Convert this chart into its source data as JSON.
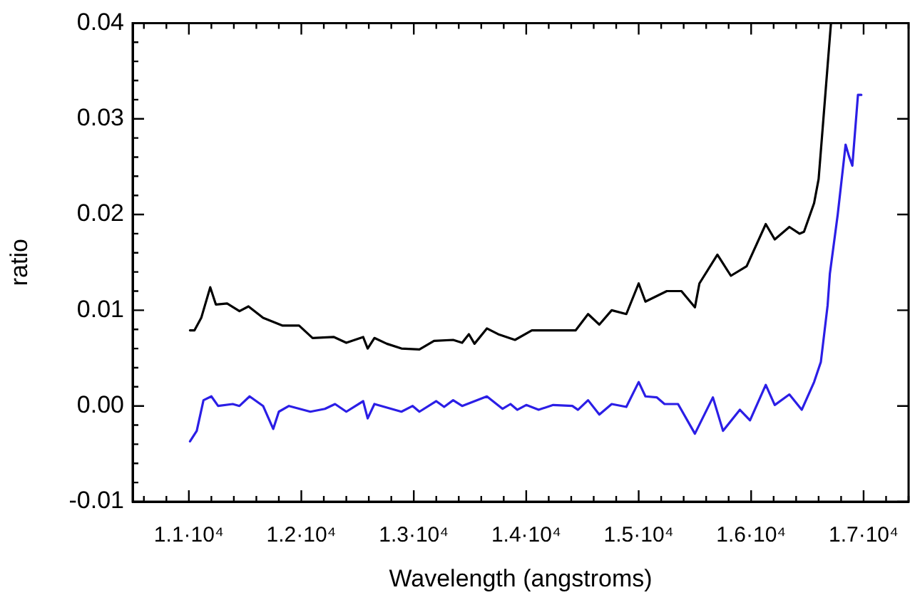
{
  "chart_data": {
    "type": "line",
    "xlabel": "Wavelength (angstroms)",
    "ylabel": "ratio",
    "xlim": [
      10500,
      17400
    ],
    "ylim": [
      -0.01,
      0.04
    ],
    "xticks": [
      {
        "value": 11000,
        "label": "1.1·10⁴"
      },
      {
        "value": 12000,
        "label": "1.2·10⁴"
      },
      {
        "value": 13000,
        "label": "1.3·10⁴"
      },
      {
        "value": 14000,
        "label": "1.4·10⁴"
      },
      {
        "value": 15000,
        "label": "1.5·10⁴"
      },
      {
        "value": 16000,
        "label": "1.6·10⁴"
      },
      {
        "value": 17000,
        "label": "1.7·10⁴"
      }
    ],
    "yticks": [
      {
        "value": -0.01,
        "label": "-0.01"
      },
      {
        "value": 0,
        "label": "0.00"
      },
      {
        "value": 0.01,
        "label": "0.01"
      },
      {
        "value": 0.02,
        "label": "0.02"
      },
      {
        "value": 0.03,
        "label": "0.03"
      },
      {
        "value": 0.04,
        "label": "0.04"
      }
    ],
    "grid": false,
    "legend": false,
    "marker": "none",
    "line_style": "solid",
    "series": [
      {
        "color": "#000000",
        "x": [
          11010,
          11050,
          11110,
          11190,
          11240,
          11340,
          11450,
          11530,
          11660,
          11830,
          11980,
          12100,
          12290,
          12400,
          12550,
          12590,
          12650,
          12760,
          12890,
          13050,
          13180,
          13350,
          13430,
          13490,
          13540,
          13650,
          13750,
          13900,
          14050,
          14440,
          14550,
          14650,
          14760,
          14890,
          15000,
          15060,
          15250,
          15380,
          15500,
          15540,
          15700,
          15820,
          15960,
          16130,
          16210,
          16340,
          16430,
          16470,
          16560,
          16600,
          16640,
          16710
        ],
        "values": [
          0.0079,
          0.0079,
          0.0092,
          0.0124,
          0.0106,
          0.0107,
          0.0099,
          0.0104,
          0.0092,
          0.0084,
          0.0084,
          0.0071,
          0.0072,
          0.0066,
          0.0072,
          0.006,
          0.0071,
          0.0065,
          0.006,
          0.0059,
          0.0068,
          0.0069,
          0.0066,
          0.0075,
          0.0065,
          0.0081,
          0.0075,
          0.0069,
          0.0079,
          0.0079,
          0.0096,
          0.0085,
          0.01,
          0.0096,
          0.0128,
          0.0109,
          0.012,
          0.012,
          0.0103,
          0.0128,
          0.0158,
          0.0136,
          0.0146,
          0.019,
          0.0174,
          0.0187,
          0.018,
          0.0182,
          0.0212,
          0.0237,
          0.0296,
          0.04
        ]
      },
      {
        "color": "#2b1ee6",
        "x": [
          11010,
          11070,
          11130,
          11200,
          11260,
          11390,
          11450,
          11540,
          11660,
          11750,
          11800,
          11890,
          12080,
          12210,
          12300,
          12400,
          12550,
          12590,
          12650,
          12890,
          12990,
          13050,
          13200,
          13270,
          13350,
          13430,
          13650,
          13790,
          13860,
          13920,
          14000,
          14110,
          14240,
          14410,
          14460,
          14550,
          14650,
          14760,
          14890,
          15000,
          15060,
          15160,
          15230,
          15350,
          15500,
          15660,
          15750,
          15900,
          15990,
          16130,
          16210,
          16340,
          16450,
          16560,
          16620,
          16680,
          16700,
          16770,
          16840,
          16870,
          16900,
          16950,
          16980
        ],
        "values": [
          -0.0037,
          -0.0026,
          0.0006,
          0.001,
          0,
          0.0002,
          0,
          0.001,
          0,
          -0.0024,
          -0.0006,
          0,
          -0.0006,
          -0.0003,
          0.0002,
          -0.0006,
          0.0005,
          -0.0013,
          0.0002,
          -0.0006,
          0,
          -0.0006,
          0.0005,
          -0.0001,
          0.0006,
          0,
          0.001,
          -0.0003,
          0.0002,
          -0.0004,
          0.0001,
          -0.0004,
          0.0001,
          0,
          -0.0004,
          0.0006,
          -0.0009,
          0.0002,
          -0.0001,
          0.0025,
          0.001,
          0.0009,
          0.0002,
          0.0002,
          -0.0029,
          0.0009,
          -0.0026,
          -0.0004,
          -0.0015,
          0.0022,
          0.0001,
          0.0012,
          -0.0004,
          0.0025,
          0.0046,
          0.0105,
          0.0138,
          0.02,
          0.0273,
          0.0261,
          0.0251,
          0.0325,
          0.0325
        ]
      }
    ]
  }
}
